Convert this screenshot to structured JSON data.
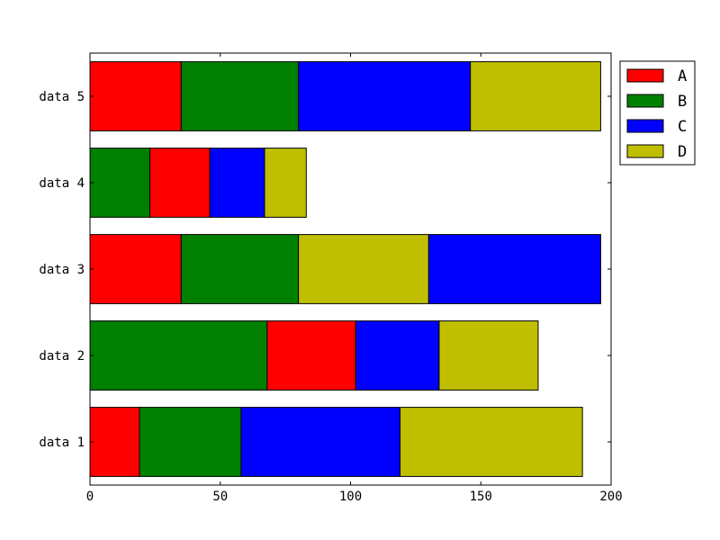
{
  "chart_data": {
    "type": "bar",
    "orientation": "horizontal",
    "stacked": true,
    "categories": [
      "data 1",
      "data 2",
      "data 3",
      "data 4",
      "data 5"
    ],
    "xlim": [
      0,
      200
    ],
    "xticks": [
      0,
      50,
      100,
      150,
      200
    ],
    "grid": false,
    "legend_position": "outside-top-right",
    "series_colors": {
      "A": "#ff0000",
      "B": "#008000",
      "C": "#0000ff",
      "D": "#bfbf00"
    },
    "legend": [
      "A",
      "B",
      "C",
      "D"
    ],
    "bars": [
      {
        "category": "data 1",
        "segments": [
          {
            "series": "A",
            "start": 0,
            "value": 19
          },
          {
            "series": "B",
            "start": 19,
            "value": 39
          },
          {
            "series": "C",
            "start": 58,
            "value": 61
          },
          {
            "series": "D",
            "start": 119,
            "value": 70
          }
        ]
      },
      {
        "category": "data 2",
        "segments": [
          {
            "series": "B",
            "start": 0,
            "value": 68
          },
          {
            "series": "A",
            "start": 68,
            "value": 34
          },
          {
            "series": "C",
            "start": 102,
            "value": 32
          },
          {
            "series": "D",
            "start": 134,
            "value": 38
          }
        ]
      },
      {
        "category": "data 3",
        "segments": [
          {
            "series": "A",
            "start": 0,
            "value": 35
          },
          {
            "series": "B",
            "start": 35,
            "value": 45
          },
          {
            "series": "D",
            "start": 80,
            "value": 50
          },
          {
            "series": "C",
            "start": 130,
            "value": 66
          }
        ]
      },
      {
        "category": "data 4",
        "segments": [
          {
            "series": "B",
            "start": 0,
            "value": 23
          },
          {
            "series": "A",
            "start": 23,
            "value": 23
          },
          {
            "series": "C",
            "start": 46,
            "value": 21
          },
          {
            "series": "D",
            "start": 67,
            "value": 16
          }
        ]
      },
      {
        "category": "data 5",
        "segments": [
          {
            "series": "A",
            "start": 0,
            "value": 35
          },
          {
            "series": "B",
            "start": 35,
            "value": 45
          },
          {
            "series": "C",
            "start": 80,
            "value": 66
          },
          {
            "series": "D",
            "start": 146,
            "value": 50
          }
        ]
      }
    ]
  }
}
